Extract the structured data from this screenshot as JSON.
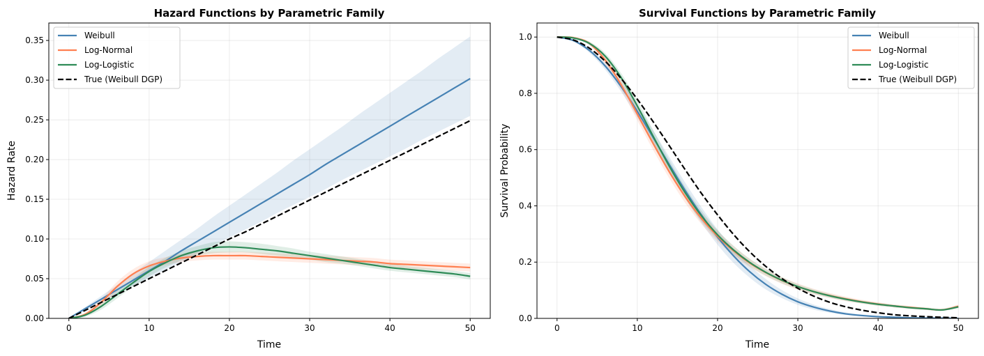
{
  "chart_data": [
    {
      "type": "line",
      "title": "Hazard Functions by Parametric Family",
      "xlabel": "Time",
      "ylabel": "Hazard Rate",
      "xlim": [
        -2.5,
        52.5
      ],
      "ylim": [
        0,
        0.372
      ],
      "xticks": [
        0,
        10,
        20,
        30,
        40,
        50
      ],
      "xtick_labels": [
        "0",
        "10",
        "20",
        "30",
        "40",
        "50"
      ],
      "yticks": [
        0,
        0.05,
        0.1,
        0.15,
        0.2,
        0.25,
        0.3,
        0.35
      ],
      "ytick_labels": [
        "0.00",
        "0.05",
        "0.10",
        "0.15",
        "0.20",
        "0.25",
        "0.30",
        "0.35"
      ],
      "grid": true,
      "legend_position": "top-left",
      "x": [
        0,
        2,
        4,
        6,
        8,
        10,
        12,
        14,
        16,
        18,
        20,
        22,
        24,
        26,
        28,
        30,
        32,
        34,
        36,
        38,
        40,
        42,
        44,
        46,
        48,
        50
      ],
      "series": [
        {
          "name": "Weibull",
          "color": "#4682b4",
          "style": "solid",
          "values": [
            0.0,
            0.012,
            0.024,
            0.036,
            0.048,
            0.06,
            0.072,
            0.085,
            0.097,
            0.109,
            0.121,
            0.133,
            0.145,
            0.157,
            0.169,
            0.181,
            0.194,
            0.206,
            0.218,
            0.23,
            0.242,
            0.254,
            0.266,
            0.278,
            0.29,
            0.302
          ],
          "lower": [
            0.0,
            0.01,
            0.021,
            0.031,
            0.041,
            0.051,
            0.061,
            0.071,
            0.082,
            0.092,
            0.102,
            0.112,
            0.122,
            0.133,
            0.143,
            0.153,
            0.163,
            0.174,
            0.184,
            0.194,
            0.204,
            0.214,
            0.225,
            0.235,
            0.245,
            0.255
          ],
          "upper": [
            0.0,
            0.014,
            0.028,
            0.042,
            0.057,
            0.071,
            0.085,
            0.099,
            0.113,
            0.128,
            0.142,
            0.156,
            0.17,
            0.184,
            0.199,
            0.213,
            0.227,
            0.241,
            0.256,
            0.27,
            0.284,
            0.298,
            0.312,
            0.327,
            0.341,
            0.355
          ]
        },
        {
          "name": "Log-Normal",
          "color": "#ff7f50",
          "style": "solid",
          "values": [
            0.0,
            0.005,
            0.02,
            0.04,
            0.056,
            0.066,
            0.072,
            0.076,
            0.078,
            0.079,
            0.079,
            0.079,
            0.078,
            0.077,
            0.076,
            0.075,
            0.074,
            0.073,
            0.072,
            0.071,
            0.069,
            0.068,
            0.067,
            0.066,
            0.065,
            0.064
          ],
          "lower": [
            0.0,
            0.003,
            0.016,
            0.034,
            0.05,
            0.06,
            0.067,
            0.071,
            0.073,
            0.074,
            0.074,
            0.074,
            0.073,
            0.072,
            0.071,
            0.07,
            0.069,
            0.068,
            0.067,
            0.066,
            0.064,
            0.063,
            0.062,
            0.061,
            0.06,
            0.059
          ],
          "upper": [
            0.0,
            0.007,
            0.024,
            0.046,
            0.062,
            0.072,
            0.077,
            0.081,
            0.083,
            0.084,
            0.084,
            0.084,
            0.083,
            0.082,
            0.081,
            0.08,
            0.079,
            0.078,
            0.077,
            0.076,
            0.074,
            0.073,
            0.072,
            0.071,
            0.07,
            0.069
          ]
        },
        {
          "name": "Log-Logistic",
          "color": "#2e8b57",
          "style": "solid",
          "values": [
            0.0,
            0.004,
            0.015,
            0.03,
            0.045,
            0.059,
            0.07,
            0.079,
            0.085,
            0.089,
            0.09,
            0.089,
            0.087,
            0.085,
            0.082,
            0.079,
            0.076,
            0.073,
            0.07,
            0.067,
            0.064,
            0.062,
            0.06,
            0.058,
            0.056,
            0.053
          ],
          "lower": [
            0.0,
            0.002,
            0.011,
            0.025,
            0.04,
            0.053,
            0.064,
            0.073,
            0.079,
            0.082,
            0.083,
            0.083,
            0.081,
            0.079,
            0.077,
            0.074,
            0.071,
            0.069,
            0.066,
            0.063,
            0.06,
            0.058,
            0.056,
            0.054,
            0.052,
            0.049
          ],
          "upper": [
            0.0,
            0.006,
            0.019,
            0.035,
            0.05,
            0.065,
            0.076,
            0.085,
            0.091,
            0.096,
            0.097,
            0.096,
            0.094,
            0.091,
            0.088,
            0.084,
            0.081,
            0.078,
            0.075,
            0.072,
            0.069,
            0.066,
            0.064,
            0.062,
            0.06,
            0.057
          ]
        },
        {
          "name": "True (Weibull DGP)",
          "color": "#000000",
          "style": "dashed",
          "values": [
            0.0,
            0.01,
            0.02,
            0.03,
            0.04,
            0.05,
            0.06,
            0.07,
            0.08,
            0.09,
            0.1,
            0.109,
            0.119,
            0.129,
            0.139,
            0.149,
            0.159,
            0.169,
            0.179,
            0.189,
            0.199,
            0.209,
            0.219,
            0.229,
            0.239,
            0.249
          ]
        }
      ]
    },
    {
      "type": "line",
      "title": "Survival Functions by Parametric Family",
      "xlabel": "Time",
      "ylabel": "Survival Probability",
      "xlim": [
        -2.5,
        52.5
      ],
      "ylim": [
        0,
        1.05
      ],
      "xticks": [
        0,
        10,
        20,
        30,
        40,
        50
      ],
      "xtick_labels": [
        "0",
        "10",
        "20",
        "30",
        "40",
        "50"
      ],
      "yticks": [
        0,
        0.2,
        0.4,
        0.6,
        0.8,
        1.0
      ],
      "ytick_labels": [
        "0.0",
        "0.2",
        "0.4",
        "0.6",
        "0.8",
        "1.0"
      ],
      "grid": true,
      "legend_position": "top-right",
      "x": [
        0,
        2,
        4,
        6,
        8,
        10,
        12,
        14,
        16,
        18,
        20,
        22,
        24,
        26,
        28,
        30,
        32,
        34,
        36,
        38,
        40,
        42,
        44,
        46,
        48,
        50
      ],
      "series": [
        {
          "name": "Weibull",
          "color": "#4682b4",
          "style": "solid",
          "values": [
            1.0,
            0.988,
            0.953,
            0.897,
            0.823,
            0.736,
            0.642,
            0.546,
            0.453,
            0.367,
            0.289,
            0.222,
            0.166,
            0.121,
            0.086,
            0.059,
            0.04,
            0.026,
            0.016,
            0.01,
            0.006,
            0.004,
            0.002,
            0.001,
            0.001,
            0.0
          ],
          "lower": [
            1.0,
            0.985,
            0.945,
            0.884,
            0.805,
            0.714,
            0.617,
            0.519,
            0.425,
            0.339,
            0.262,
            0.197,
            0.145,
            0.103,
            0.072,
            0.048,
            0.031,
            0.02,
            0.012,
            0.007,
            0.004,
            0.002,
            0.001,
            0.001,
            0.0,
            0.0
          ],
          "upper": [
            1.0,
            0.991,
            0.961,
            0.91,
            0.841,
            0.758,
            0.667,
            0.573,
            0.481,
            0.395,
            0.316,
            0.247,
            0.188,
            0.14,
            0.101,
            0.071,
            0.049,
            0.033,
            0.021,
            0.014,
            0.009,
            0.006,
            0.004,
            0.002,
            0.001,
            0.001
          ]
        },
        {
          "name": "Log-Normal",
          "color": "#ff7f50",
          "style": "solid",
          "values": [
            1.0,
            0.998,
            0.978,
            0.918,
            0.83,
            0.726,
            0.62,
            0.52,
            0.431,
            0.355,
            0.292,
            0.24,
            0.197,
            0.163,
            0.135,
            0.113,
            0.095,
            0.081,
            0.069,
            0.059,
            0.051,
            0.044,
            0.039,
            0.034,
            0.03,
            0.043
          ],
          "lower": [
            1.0,
            0.997,
            0.972,
            0.905,
            0.812,
            0.704,
            0.597,
            0.497,
            0.409,
            0.335,
            0.273,
            0.223,
            0.182,
            0.15,
            0.123,
            0.102,
            0.085,
            0.072,
            0.061,
            0.052,
            0.045,
            0.039,
            0.034,
            0.03,
            0.027,
            0.037
          ],
          "upper": [
            1.0,
            0.999,
            0.984,
            0.931,
            0.848,
            0.748,
            0.643,
            0.543,
            0.453,
            0.375,
            0.311,
            0.257,
            0.212,
            0.176,
            0.147,
            0.124,
            0.105,
            0.09,
            0.077,
            0.066,
            0.057,
            0.05,
            0.044,
            0.039,
            0.035,
            0.049
          ]
        },
        {
          "name": "Log-Logistic",
          "color": "#2e8b57",
          "style": "solid",
          "values": [
            1.0,
            0.997,
            0.978,
            0.932,
            0.855,
            0.755,
            0.646,
            0.54,
            0.445,
            0.364,
            0.297,
            0.243,
            0.199,
            0.164,
            0.136,
            0.113,
            0.095,
            0.08,
            0.068,
            0.058,
            0.05,
            0.044,
            0.038,
            0.034,
            0.03,
            0.041
          ],
          "lower": [
            1.0,
            0.996,
            0.972,
            0.921,
            0.839,
            0.735,
            0.624,
            0.518,
            0.424,
            0.345,
            0.28,
            0.228,
            0.186,
            0.152,
            0.125,
            0.104,
            0.087,
            0.073,
            0.062,
            0.053,
            0.045,
            0.039,
            0.034,
            0.03,
            0.027,
            0.036
          ],
          "upper": [
            1.0,
            0.998,
            0.984,
            0.943,
            0.871,
            0.775,
            0.668,
            0.562,
            0.466,
            0.383,
            0.314,
            0.258,
            0.212,
            0.176,
            0.147,
            0.122,
            0.103,
            0.087,
            0.074,
            0.063,
            0.055,
            0.048,
            0.042,
            0.037,
            0.033,
            0.046
          ]
        },
        {
          "name": "True (Weibull DGP)",
          "color": "#000000",
          "style": "dashed",
          "values": [
            1.0,
            0.99,
            0.961,
            0.914,
            0.852,
            0.779,
            0.698,
            0.613,
            0.527,
            0.444,
            0.368,
            0.298,
            0.237,
            0.185,
            0.142,
            0.107,
            0.079,
            0.057,
            0.041,
            0.029,
            0.02,
            0.013,
            0.009,
            0.006,
            0.004,
            0.002
          ]
        }
      ]
    }
  ]
}
